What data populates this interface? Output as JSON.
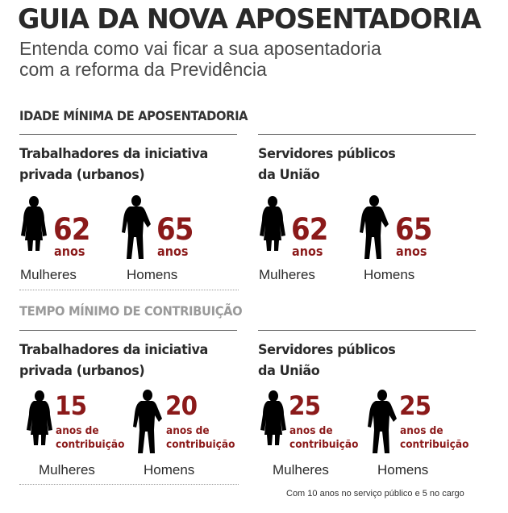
{
  "header": {
    "title": "GUIA DA NOVA APOSENTADORIA",
    "subtitle_line1": "Entenda como vai ficar a sua aposentadoria",
    "subtitle_line2": "com a reforma da Previdência"
  },
  "colors": {
    "accent": "#8b1a1a",
    "figure": "#8e8e8e",
    "text": "#2b2b2b",
    "muted": "#9a9a9a"
  },
  "sections": [
    {
      "heading": "IDADE MÍNIMA DE APOSENTADORIA",
      "groups": [
        {
          "title_line1": "Trabalhadores da iniciativa",
          "title_line2": "privada (urbanos)",
          "women": {
            "value": "62",
            "unit": "anos",
            "label": "Mulheres"
          },
          "men": {
            "value": "65",
            "unit": "anos",
            "label": "Homens"
          }
        },
        {
          "title_line1": "Servidores públicos",
          "title_line2": "da União",
          "women": {
            "value": "62",
            "unit": "anos",
            "label": "Mulheres"
          },
          "men": {
            "value": "65",
            "unit": "anos",
            "label": "Homens"
          }
        }
      ]
    },
    {
      "heading": "TEMPO MÍNIMO DE CONTRIBUIÇÃO",
      "groups": [
        {
          "title_line1": "Trabalhadores da iniciativa",
          "title_line2": "privada (urbanos)",
          "women": {
            "value": "15",
            "unit1": "anos de",
            "unit2": "contribuição",
            "label": "Mulheres"
          },
          "men": {
            "value": "20",
            "unit1": "anos de",
            "unit2": "contribuição",
            "label": "Homens"
          }
        },
        {
          "title_line1": "Servidores públicos",
          "title_line2": "da União",
          "women": {
            "value": "25",
            "unit1": "anos de",
            "unit2": "contribuição",
            "label": "Mulheres"
          },
          "men": {
            "value": "25",
            "unit1": "anos de",
            "unit2": "contribuição",
            "label": "Homens"
          }
        }
      ]
    }
  ],
  "footnote": "Com 10 anos no serviço público e 5 no cargo",
  "icons": {
    "women": "elderly-woman-icon",
    "men": "elderly-man-with-cane-icon"
  }
}
